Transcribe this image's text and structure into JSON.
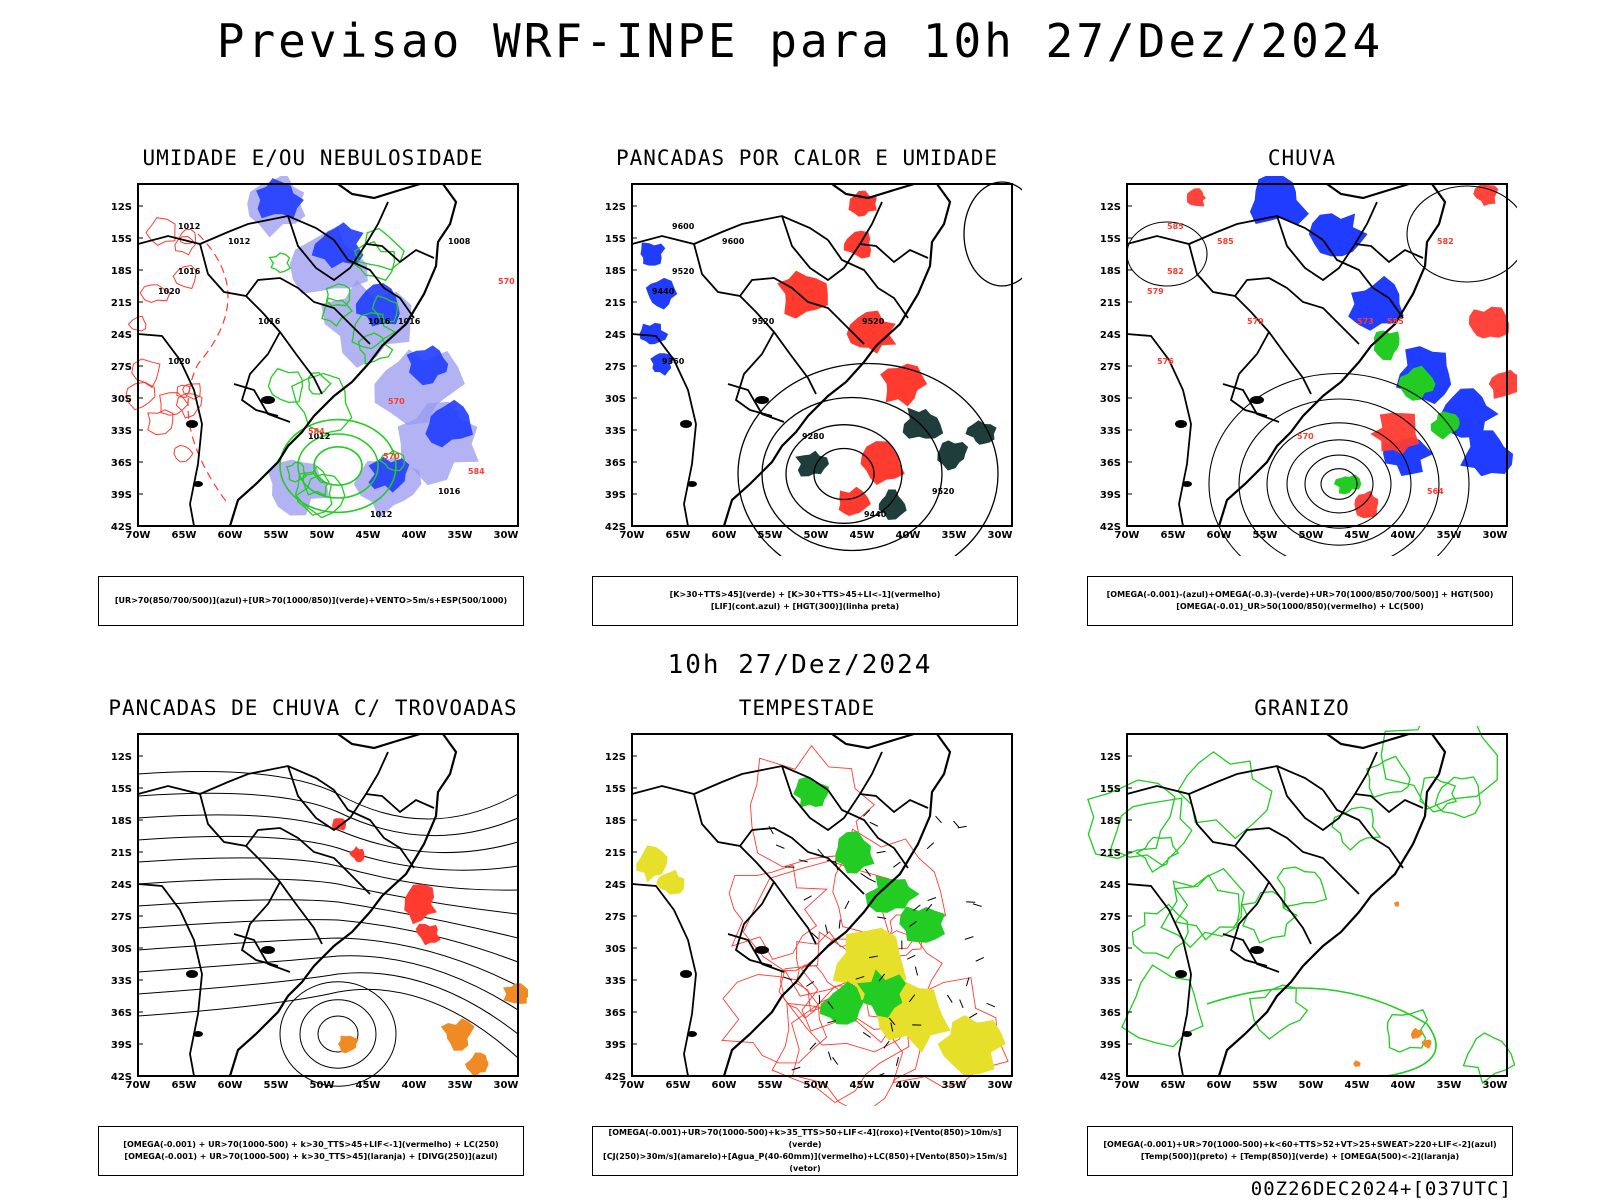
{
  "main_title": "Previsao WRF-INPE  para 10h 27/Dez/2024",
  "middle_title": "10h 27/Dez/2024",
  "footer": "00Z26DEC2024+[037UTC]",
  "axes": {
    "lat_labels": [
      "12S",
      "15S",
      "18S",
      "21S",
      "24S",
      "27S",
      "30S",
      "33S",
      "36S",
      "39S",
      "42S"
    ],
    "lon_labels": [
      "70W",
      "65W",
      "60W",
      "55W",
      "50W",
      "45W",
      "40W",
      "35W",
      "30W"
    ]
  },
  "colors": {
    "blue": "#1f3cff",
    "lightblue": "#9a9af0",
    "green": "#22cc22",
    "red": "#ff3b30",
    "darkgreen": "#1f3d3a",
    "yellow": "#e6e02a",
    "orange": "#f08a24",
    "black": "#000000"
  },
  "panels": [
    {
      "title": "UMIDADE E/OU NEBULOSIDADE",
      "legend": [
        "[UR>70(850/700/500)](azul)+[UR>70(1000/850)](verde)+VENTO>5m/s+ESP(500/1000)"
      ],
      "contour_labels": [
        "1012",
        "1012",
        "1016",
        "1016",
        "1020",
        "1020",
        "1016",
        "1012",
        "1012",
        "1016",
        "1008",
        "1016",
        "570",
        "570",
        "584",
        "584",
        "570"
      ]
    },
    {
      "title": "PANCADAS POR CALOR E UMIDADE",
      "legend": [
        "[K>30+TTS>45](verde) + [K>30+TTS>45+LI<-1](vermelho)",
        "[LIF](cont.azul) + [HGT(300)](linha preta)"
      ],
      "contour_labels": [
        "9600",
        "9600",
        "9520",
        "9520",
        "9440",
        "9360",
        "9520",
        "9280",
        "9440",
        "9520"
      ]
    },
    {
      "title": "CHUVA",
      "legend": [
        "[OMEGA(-0.001)-(azul)+OMEGA(-0.3)-(verde)+UR>70(1000/850/700/500)] + HGT(500)",
        "[OMEGA(-0.01)_UR>50(1000/850)(vermelho) + LC(500)"
      ],
      "contour_labels": [
        "585",
        "585",
        "582",
        "579",
        "579",
        "576",
        "573",
        "570",
        "567",
        "564",
        "582",
        "585"
      ]
    },
    {
      "title": "PANCADAS DE CHUVA C/ TROVOADAS",
      "legend": [
        "[OMEGA(-0.001) + UR>70(1000-500) + k>30_TTS>45+LIF<-1](vermelho) + LC(250)",
        "[OMEGA(-0.001) + UR>70(1000-500) + k>30_TTS>45](laranja) + [DIVG(250)](azul)"
      ],
      "contour_labels": []
    },
    {
      "title": "TEMPESTADE",
      "legend": [
        "[OMEGA(-0.001)+UR>70(1000-500)+k>35_TTS>50+LIF<-4](roxo)+[Vento(850)>10m/s](verde)",
        "[CJ(250)>30m/s](amarelo)+[Agua_P(40-60mm)](vermelho)+LC(850)+[Vento(850)>15m/s](vetor)"
      ],
      "contour_labels": []
    },
    {
      "title": "GRANIZO",
      "legend": [
        "[OMEGA(-0.001)+UR>70(1000-500)+k<60+TTS>52+VT>25+SWEAT>220+LIF<-2](azul)",
        "[Temp(500)](preto) + [Temp(850)](verde) + [OMEGA(500)<-2](laranja)"
      ],
      "contour_labels": []
    }
  ]
}
